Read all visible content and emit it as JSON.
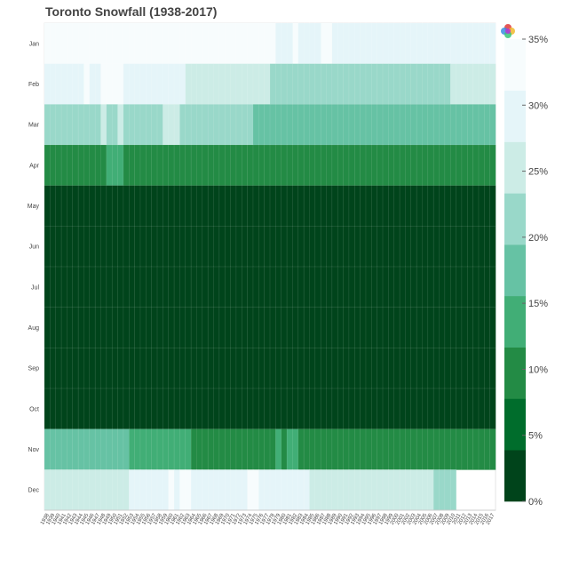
{
  "title": "Toronto Snowfall (1938-2017)",
  "chart_data": {
    "type": "heatmap",
    "title": "Toronto Snowfall (1938-2017)",
    "months": [
      "Jan",
      "Feb",
      "Mar",
      "Apr",
      "May",
      "Jun",
      "Jul",
      "Aug",
      "Sep",
      "Oct",
      "Nov",
      "Dec"
    ],
    "years": [
      1938,
      1939,
      1940,
      1941,
      1942,
      1943,
      1944,
      1945,
      1946,
      1947,
      1948,
      1949,
      1950,
      1951,
      1952,
      1953,
      1954,
      1955,
      1956,
      1957,
      1958,
      1959,
      1960,
      1961,
      1962,
      1963,
      1964,
      1965,
      1966,
      1967,
      1968,
      1969,
      1970,
      1971,
      1972,
      1973,
      1974,
      1975,
      1976,
      1977,
      1978,
      1979,
      1980,
      1981,
      1982,
      1983,
      1984,
      1985,
      1986,
      1987,
      1988,
      1989,
      1990,
      1991,
      1992,
      1993,
      1994,
      1995,
      1996,
      1997,
      1998,
      1999,
      2000,
      2001,
      2002,
      2003,
      2004,
      2005,
      2006,
      2007,
      2008,
      2009,
      2010,
      2011,
      2012,
      2013,
      2014,
      2015,
      2016,
      2017
    ],
    "value_unit": "% of annual snowfall",
    "color_scale": {
      "low": 0,
      "high": 35,
      "step": 5,
      "ticks": [
        "0%",
        "5%",
        "10%",
        "15%",
        "20%",
        "25%",
        "30%",
        "35%"
      ],
      "palette": [
        "#00441b",
        "#006d2c",
        "#238b45",
        "#41ae76",
        "#66c2a4",
        "#99d8c9",
        "#ccece6",
        "#e5f5f9",
        "#f7fcfd"
      ]
    },
    "rows": [
      {
        "month": "Jan",
        "segments": [
          {
            "from": 1938,
            "to": 2017,
            "value": 34.5
          },
          {
            "from": 1979,
            "to": 1981,
            "value": 30.6
          },
          {
            "from": 1983,
            "to": 1986,
            "value": 30.6
          },
          {
            "from": 1989,
            "to": 2017,
            "value": 30.6
          }
        ]
      },
      {
        "month": "Feb",
        "segments": [
          {
            "from": 1938,
            "to": 1944,
            "value": 30.6
          },
          {
            "from": 1945,
            "to": 1945,
            "value": 34.5
          },
          {
            "from": 1946,
            "to": 1947,
            "value": 30.6
          },
          {
            "from": 1948,
            "to": 1951,
            "value": 34.5
          },
          {
            "from": 1952,
            "to": 1962,
            "value": 30.6
          },
          {
            "from": 1963,
            "to": 1977,
            "value": 26.7
          },
          {
            "from": 1978,
            "to": 2009,
            "value": 22.8
          },
          {
            "from": 2010,
            "to": 2017,
            "value": 26.7
          }
        ]
      },
      {
        "month": "Mar",
        "segments": [
          {
            "from": 1938,
            "to": 1947,
            "value": 22.8
          },
          {
            "from": 1948,
            "to": 1948,
            "value": 26.7
          },
          {
            "from": 1949,
            "to": 1950,
            "value": 22.8
          },
          {
            "from": 1951,
            "to": 1951,
            "value": 26.7
          },
          {
            "from": 1952,
            "to": 1958,
            "value": 22.8
          },
          {
            "from": 1959,
            "to": 1961,
            "value": 26.7
          },
          {
            "from": 1962,
            "to": 1974,
            "value": 22.8
          },
          {
            "from": 1975,
            "to": 2017,
            "value": 18.9
          }
        ]
      },
      {
        "month": "Apr",
        "segments": [
          {
            "from": 1938,
            "to": 1948,
            "value": 7.8
          },
          {
            "from": 1949,
            "to": 1951,
            "value": 11.7
          },
          {
            "from": 1952,
            "to": 2017,
            "value": 7.8
          }
        ]
      },
      {
        "month": "May",
        "segments": [
          {
            "from": 1938,
            "to": 2017,
            "value": 1
          }
        ]
      },
      {
        "month": "Jun",
        "segments": [
          {
            "from": 1938,
            "to": 2017,
            "value": 0
          }
        ]
      },
      {
        "month": "Jul",
        "segments": [
          {
            "from": 1938,
            "to": 2017,
            "value": 0
          }
        ]
      },
      {
        "month": "Aug",
        "segments": [
          {
            "from": 1938,
            "to": 2017,
            "value": 0
          }
        ]
      },
      {
        "month": "Sep",
        "segments": [
          {
            "from": 1938,
            "to": 2017,
            "value": 0
          }
        ]
      },
      {
        "month": "Oct",
        "segments": [
          {
            "from": 1938,
            "to": 2017,
            "value": 1
          }
        ]
      },
      {
        "month": "Nov",
        "segments": [
          {
            "from": 1938,
            "to": 1952,
            "value": 15.6
          },
          {
            "from": 1953,
            "to": 1963,
            "value": 11.7
          },
          {
            "from": 1964,
            "to": 1978,
            "value": 7.8
          },
          {
            "from": 1979,
            "to": 1979,
            "value": 11.7
          },
          {
            "from": 1980,
            "to": 1980,
            "value": 7.8
          },
          {
            "from": 1981,
            "to": 1982,
            "value": 11.7
          },
          {
            "from": 1983,
            "to": 2017,
            "value": 7.8
          }
        ]
      },
      {
        "month": "Dec",
        "segments": [
          {
            "from": 1938,
            "to": 1952,
            "value": 26.7
          },
          {
            "from": 1953,
            "to": 1959,
            "value": 30.6
          },
          {
            "from": 1960,
            "to": 1960,
            "value": 34.5
          },
          {
            "from": 1961,
            "to": 1961,
            "value": 30.6
          },
          {
            "from": 1962,
            "to": 1963,
            "value": 34.5
          },
          {
            "from": 1964,
            "to": 1973,
            "value": 30.6
          },
          {
            "from": 1974,
            "to": 1975,
            "value": 34.5
          },
          {
            "from": 1976,
            "to": 1984,
            "value": 30.6
          },
          {
            "from": 1985,
            "to": 2006,
            "value": 26.7
          },
          {
            "from": 2007,
            "to": 2010,
            "value": 22.8
          }
        ]
      }
    ],
    "xlabel": "",
    "ylabel": "",
    "grid": false,
    "legend": "right"
  }
}
